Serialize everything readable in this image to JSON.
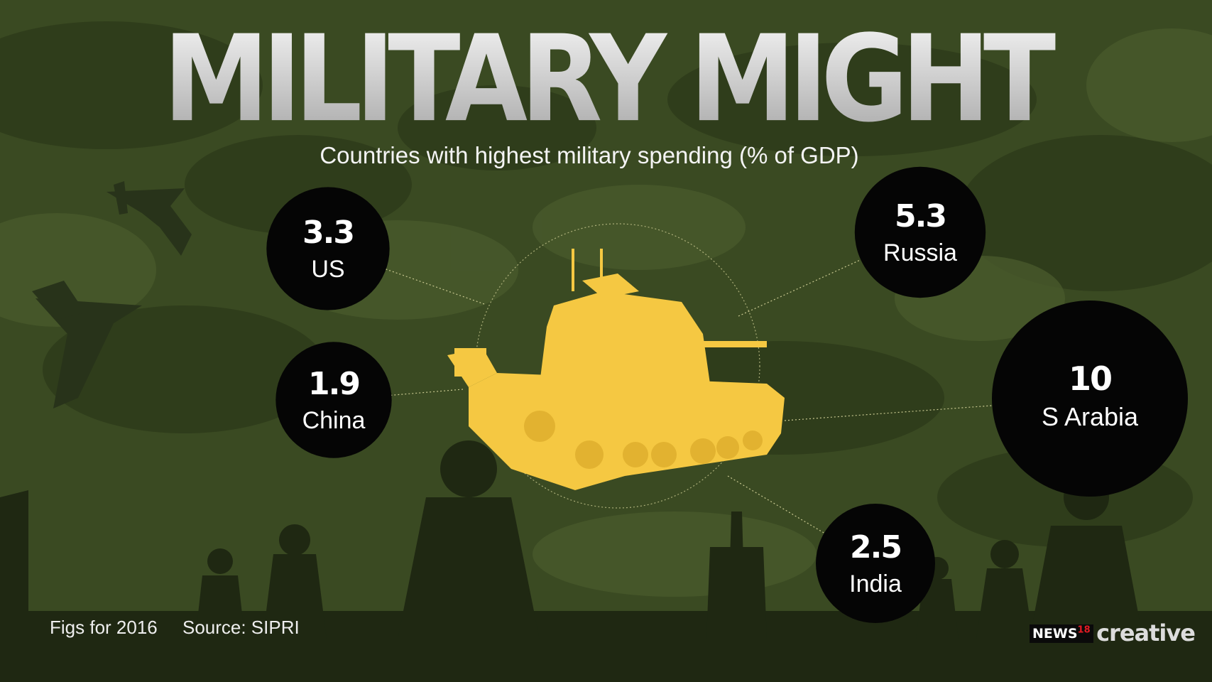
{
  "title": "MILITARY MIGHT",
  "subtitle": "Countries with highest military spending (% of GDP)",
  "footer": {
    "figs_note": "Figs for 2016",
    "source": "Source: SIPRI"
  },
  "logo": {
    "brand": "NEWS",
    "number": "18",
    "word": "creative"
  },
  "colors": {
    "background": "#3a4a22",
    "bubble": "#050505",
    "tank": "#f5c842",
    "connector": "#c8c890",
    "title": "#d9d9d9"
  },
  "chart_data": {
    "type": "bubble",
    "title": "MILITARY MIGHT",
    "subtitle": "Countries with highest military spending (% of GDP)",
    "categories": [
      "US",
      "China",
      "Russia",
      "S Arabia",
      "India"
    ],
    "values": [
      3.3,
      1.9,
      5.3,
      10,
      2.5
    ],
    "value_labels": [
      "3.3",
      "1.9",
      "5.3",
      "10",
      "2.5"
    ]
  }
}
